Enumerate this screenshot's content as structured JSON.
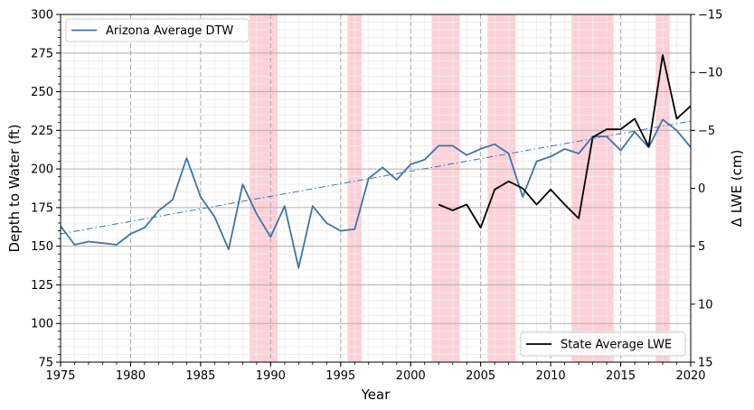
{
  "chart_data": {
    "type": "line",
    "xlabel": "Year",
    "ylabel_left": "Depth to Water (ft)",
    "ylabel_right": "Δ LWE (cm)",
    "xlim": [
      1975,
      2020
    ],
    "ylim_left": [
      75,
      300
    ],
    "ylim_right": [
      15,
      -15
    ],
    "x_ticks": [
      "1975",
      "1980",
      "1985",
      "1990",
      "1995",
      "2000",
      "2005",
      "2010",
      "2015",
      "2020"
    ],
    "y_left_ticks": [
      "75",
      "100",
      "125",
      "150",
      "175",
      "200",
      "225",
      "250",
      "275",
      "300"
    ],
    "y_right_ticks": [
      "15",
      "10",
      "5",
      "0",
      "−5",
      "−10",
      "−15"
    ],
    "grid": true,
    "shaded_periods": [
      {
        "start": 1988.5,
        "end": 1990.5
      },
      {
        "start": 1995.5,
        "end": 1996.5
      },
      {
        "start": 2001.5,
        "end": 2003.5
      },
      {
        "start": 2005.5,
        "end": 2007.5
      },
      {
        "start": 2011.5,
        "end": 2014.5
      },
      {
        "start": 2017.5,
        "end": 2018.5
      }
    ],
    "shade_color": "#ffc0cb",
    "series": [
      {
        "name": "Arizona Average DTW",
        "axis": "left",
        "color": "#3f74a8",
        "x": [
          1975,
          1976,
          1977,
          1978,
          1979,
          1980,
          1981,
          1982,
          1983,
          1984,
          1985,
          1986,
          1987,
          1988,
          1989,
          1990,
          1991,
          1992,
          1993,
          1994,
          1995,
          1996,
          1997,
          1998,
          1999,
          2000,
          2001,
          2002,
          2003,
          2004,
          2005,
          2006,
          2007,
          2008,
          2009,
          2010,
          2011,
          2012,
          2013,
          2014,
          2015,
          2016,
          2017,
          2018,
          2019,
          2020
        ],
        "y": [
          163,
          151,
          153,
          152,
          151,
          158,
          162,
          173,
          180,
          207,
          182,
          169,
          148,
          190,
          171,
          156,
          176,
          136,
          176,
          165,
          160,
          161,
          194,
          201,
          193,
          203,
          206,
          215,
          215,
          209,
          213,
          216,
          210,
          182,
          205,
          208,
          213,
          210,
          221,
          221,
          212,
          224,
          214,
          232,
          225,
          214
        ]
      },
      {
        "name": "State Average LWE",
        "axis": "right",
        "color": "#000000",
        "x": [
          2002,
          2003,
          2004,
          2005,
          2006,
          2007,
          2008,
          2009,
          2010,
          2011,
          2012,
          2013,
          2014,
          2015,
          2016,
          2017,
          2018,
          2019,
          2020
        ],
        "y": [
          1.4,
          1.9,
          1.4,
          3.4,
          0.1,
          -0.6,
          0.0,
          1.4,
          0.1,
          1.4,
          2.6,
          -4.4,
          -5.1,
          -5.1,
          -6.0,
          -3.6,
          -11.5,
          -6.0,
          -7.1
        ]
      },
      {
        "axis": "left",
        "style": "dashdot",
        "color": "#3f74a8",
        "x": [
          1975,
          2020
        ],
        "y": [
          158,
          231
        ]
      }
    ],
    "legends": [
      {
        "position": "upper-left",
        "entries": [
          "Arizona Average DTW"
        ]
      },
      {
        "position": "lower-right",
        "entries": [
          "State Average LWE"
        ]
      }
    ]
  }
}
